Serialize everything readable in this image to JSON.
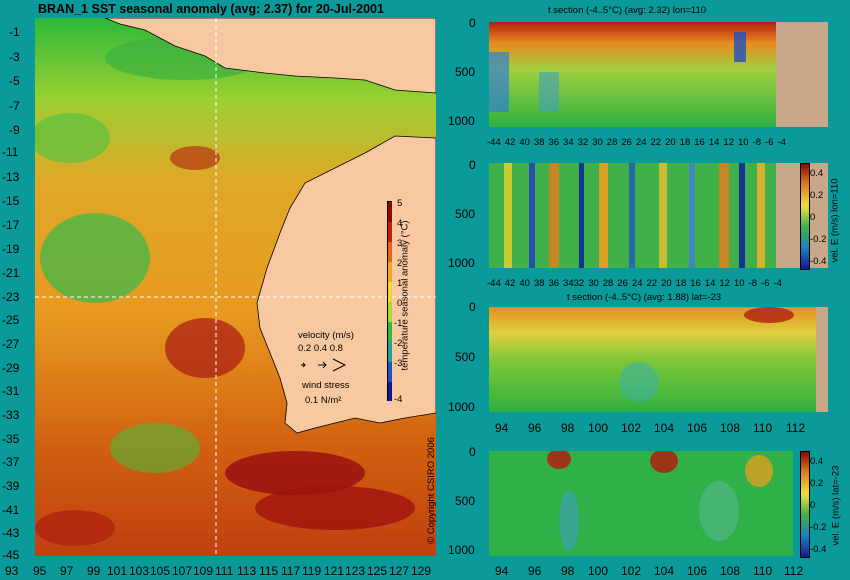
{
  "main_map": {
    "title": "BRAN_1  SST seasonal anomaly  (avg: 2.37)  for 20-Jul-2001",
    "lat_labels": [
      "-1",
      "-3",
      "-5",
      "-7",
      "-9",
      "-11",
      "-13",
      "-15",
      "-17",
      "-19",
      "-21",
      "-23",
      "-25",
      "-27",
      "-29",
      "-31",
      "-33",
      "-35",
      "-37",
      "-39",
      "-41",
      "-43",
      "-45"
    ],
    "lon_labels": [
      "93",
      "95",
      "97",
      "99",
      "101",
      "103",
      "105",
      "107",
      "109",
      "111",
      "113",
      "115",
      "117",
      "119",
      "121",
      "123",
      "125",
      "127",
      "129"
    ],
    "colorbar": {
      "label": "temperature seasonal anomaly (°C)",
      "ticks": [
        "5",
        "4",
        "3",
        "2",
        "1",
        "0",
        "-1",
        "-2",
        "-3",
        "-4"
      ]
    },
    "velocity_legend": {
      "title": "velocity (m/s)",
      "values": "0.2 0.4 0.8"
    },
    "wind_legend": {
      "title": "wind stress",
      "value": "0.1 N/m²"
    },
    "copyright": "© Copyright CSIRO 2006"
  },
  "panels": [
    {
      "title": "t section (-4..5°C) (avg: 2.32) lon=110",
      "x_labels": [
        "-44",
        "42",
        "40",
        "38",
        "36",
        "34",
        "32",
        "30",
        "28",
        "26",
        "24",
        "22",
        "20",
        "18",
        "16",
        "14",
        "12",
        "10",
        "-8",
        "-6",
        "-4"
      ],
      "y_labels": [
        "0",
        "500",
        "1000"
      ]
    },
    {
      "title": "",
      "x_labels": [
        "-44",
        "42",
        "40",
        "38",
        "36",
        "3432",
        "30",
        "28",
        "26",
        "24",
        "22",
        "20",
        "18",
        "16",
        "14",
        "12",
        "10",
        "-8",
        "-6",
        "-4"
      ],
      "y_labels": [
        "0",
        "500",
        "1000"
      ],
      "colorbar": {
        "ticks": [
          "0.4",
          "0.2",
          "0",
          "-0.2",
          "-0.4"
        ],
        "label": "vel. E (m/s) lon=110"
      }
    },
    {
      "title": "t section (-4..5°C) (avg: 1.88) lat=-23",
      "x_labels": [
        "94",
        "96",
        "98",
        "100",
        "102",
        "104",
        "106",
        "108",
        "110",
        "112"
      ],
      "y_labels": [
        "0",
        "500",
        "1000"
      ]
    },
    {
      "title": "",
      "x_labels": [
        "94",
        "96",
        "98",
        "100",
        "102",
        "104",
        "106",
        "108",
        "110",
        "112"
      ],
      "y_labels": [
        "0",
        "500",
        "1000"
      ],
      "colorbar": {
        "ticks": [
          "0.4",
          "0.2",
          "0",
          "-0.2",
          "-0.4"
        ],
        "label": "vel. E (m/s) lat=-23"
      }
    }
  ],
  "colors": {
    "background": "#0a9a9a",
    "land": "#f8c8a0",
    "section_land": "#c8a888",
    "sst_warm": "#e8a020",
    "sst_hot": "#a01010",
    "sst_cool": "#28b040"
  }
}
